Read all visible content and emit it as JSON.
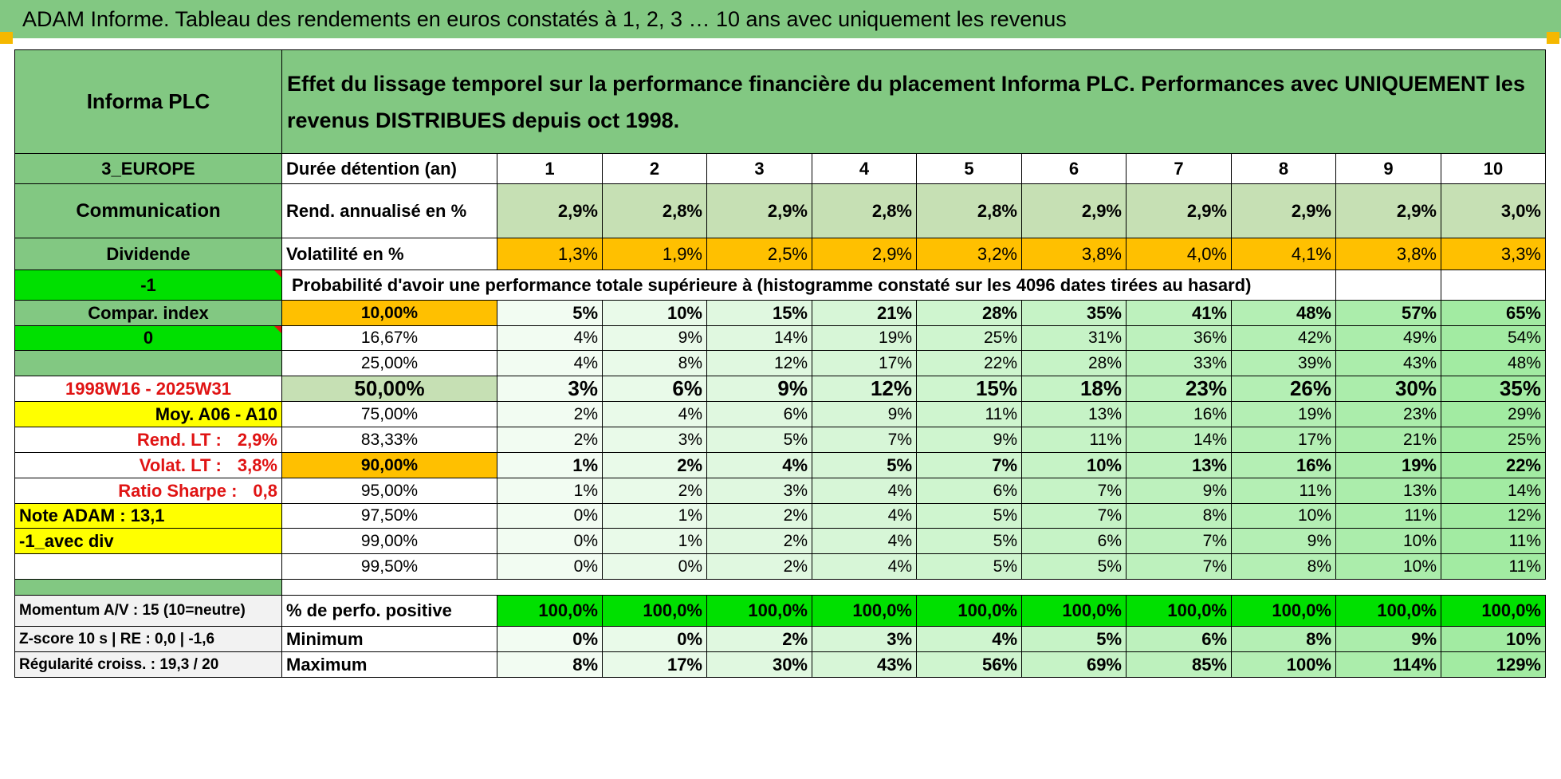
{
  "title": "ADAM Informe. Tableau des rendements en euros constatés à 1, 2, 3 … 10 ans avec uniquement les revenus",
  "colors": {
    "header_green": "#82c882",
    "light_green": "#c6e0b4",
    "lime": "#00e000",
    "yellow": "#ffff00",
    "orange": "#ffc000",
    "red_text": "#e01414"
  },
  "left": {
    "name": "Informa PLC",
    "region": "3_EUROPE",
    "sector": "Communication",
    "type": "Dividende",
    "minus_one": "-1",
    "compar_index": "Compar. index",
    "zero": "0",
    "period": "1998W16 - 2025W31",
    "moy": "Moy. A06 - A10",
    "rend_lt_label": "Rend. LT :",
    "rend_lt_value": "2,9%",
    "volat_lt_label": "Volat. LT :",
    "volat_lt_value": "3,8%",
    "sharpe_label": "Ratio Sharpe :",
    "sharpe_value": "0,8",
    "note": "Note ADAM : 13,1",
    "avec_div": "-1_avec div",
    "momentum": "Momentum A/V : 15 (10=neutre)",
    "zscore": "Z-score 10 s | RE : 0,0 | -1,6",
    "regularite": "Régularité croiss. : 19,3 / 20"
  },
  "header": {
    "description": "Effet du lissage temporel sur la performance financière du placement Informa PLC. Performances avec UNIQUEMENT les revenus DISTRIBUES depuis oct 1998.",
    "duree_label": "Durée détention (an)",
    "years": [
      "1",
      "2",
      "3",
      "4",
      "5",
      "6",
      "7",
      "8",
      "9",
      "10"
    ],
    "rend_label": "Rend. annualisé en %",
    "rend": [
      "2,9%",
      "2,8%",
      "2,9%",
      "2,8%",
      "2,8%",
      "2,9%",
      "2,9%",
      "2,9%",
      "2,9%",
      "3,0%"
    ],
    "vol_label": "Volatilité en %",
    "vol": [
      "1,3%",
      "1,9%",
      "2,5%",
      "2,9%",
      "3,2%",
      "3,8%",
      "4,0%",
      "4,1%",
      "3,8%",
      "3,3%"
    ],
    "prob_label": "Probabilité d'avoir une performance totale supérieure à (histogramme constaté sur les 4096 dates tirées au hasard)"
  },
  "prob_rows": [
    {
      "pct": "10,00%",
      "values": [
        "5%",
        "10%",
        "15%",
        "21%",
        "28%",
        "35%",
        "41%",
        "48%",
        "57%",
        "65%"
      ]
    },
    {
      "pct": "16,67%",
      "values": [
        "4%",
        "9%",
        "14%",
        "19%",
        "25%",
        "31%",
        "36%",
        "42%",
        "49%",
        "54%"
      ]
    },
    {
      "pct": "25,00%",
      "values": [
        "4%",
        "8%",
        "12%",
        "17%",
        "22%",
        "28%",
        "33%",
        "39%",
        "43%",
        "48%"
      ]
    },
    {
      "pct": "50,00%",
      "values": [
        "3%",
        "6%",
        "9%",
        "12%",
        "15%",
        "18%",
        "23%",
        "26%",
        "30%",
        "35%"
      ]
    },
    {
      "pct": "75,00%",
      "values": [
        "2%",
        "4%",
        "6%",
        "9%",
        "11%",
        "13%",
        "16%",
        "19%",
        "23%",
        "29%"
      ]
    },
    {
      "pct": "83,33%",
      "values": [
        "2%",
        "3%",
        "5%",
        "7%",
        "9%",
        "11%",
        "14%",
        "17%",
        "21%",
        "25%"
      ]
    },
    {
      "pct": "90,00%",
      "values": [
        "1%",
        "2%",
        "4%",
        "5%",
        "7%",
        "10%",
        "13%",
        "16%",
        "19%",
        "22%"
      ]
    },
    {
      "pct": "95,00%",
      "values": [
        "1%",
        "2%",
        "3%",
        "4%",
        "6%",
        "7%",
        "9%",
        "11%",
        "13%",
        "14%"
      ]
    },
    {
      "pct": "97,50%",
      "values": [
        "0%",
        "1%",
        "2%",
        "4%",
        "5%",
        "7%",
        "8%",
        "10%",
        "11%",
        "12%"
      ]
    },
    {
      "pct": "99,00%",
      "values": [
        "0%",
        "1%",
        "2%",
        "4%",
        "5%",
        "6%",
        "7%",
        "9%",
        "10%",
        "11%"
      ]
    },
    {
      "pct": "99,50%",
      "values": [
        "0%",
        "0%",
        "2%",
        "4%",
        "5%",
        "5%",
        "7%",
        "8%",
        "10%",
        "11%"
      ]
    }
  ],
  "bottom": {
    "pos_label": "% de perfo. positive",
    "pos": [
      "100,0%",
      "100,0%",
      "100,0%",
      "100,0%",
      "100,0%",
      "100,0%",
      "100,0%",
      "100,0%",
      "100,0%",
      "100,0%"
    ],
    "min_label": "Minimum",
    "min": [
      "0%",
      "0%",
      "2%",
      "3%",
      "4%",
      "5%",
      "6%",
      "8%",
      "9%",
      "10%"
    ],
    "max_label": "Maximum",
    "max": [
      "8%",
      "17%",
      "30%",
      "43%",
      "56%",
      "69%",
      "85%",
      "100%",
      "114%",
      "129%"
    ]
  }
}
